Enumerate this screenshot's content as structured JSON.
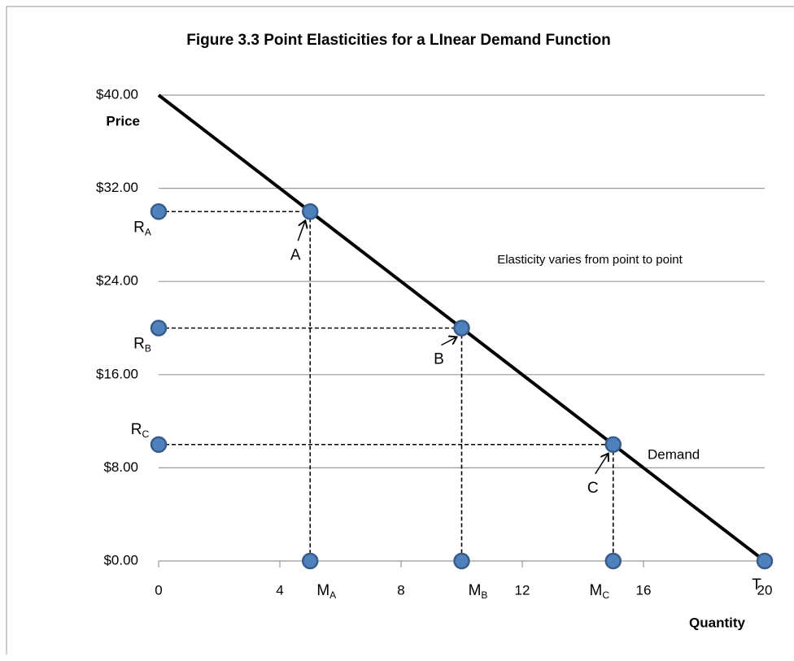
{
  "chart_data": {
    "type": "line",
    "title": "Figure 3.3    Point Elasticities for a LInear Demand Function",
    "xlabel": "Quantity",
    "ylabel": "Price",
    "annotation": "Elasticity varies from point to point",
    "series": [
      {
        "name": "Demand",
        "color": "#000000",
        "x": [
          0,
          20
        ],
        "values": [
          40,
          0
        ]
      }
    ],
    "points": {
      "color": "#4f81bd",
      "x": [
        0,
        0,
        0,
        5,
        10,
        15,
        5,
        10,
        15,
        20
      ],
      "values": [
        30,
        20,
        10,
        30,
        20,
        10,
        0,
        0,
        0,
        0
      ],
      "labels": [
        {
          "text": "R",
          "sub": "A"
        },
        {
          "text": "R",
          "sub": "B"
        },
        {
          "text": "R",
          "sub": "C"
        },
        {
          "text": "A"
        },
        {
          "text": "B"
        },
        {
          "text": "C"
        },
        {
          "text": "M",
          "sub": "A"
        },
        {
          "text": "M",
          "sub": "B"
        },
        {
          "text": "M",
          "sub": "C"
        },
        {
          "text": "T"
        }
      ]
    },
    "xlim": [
      0,
      20
    ],
    "xticks": [
      0,
      4,
      8,
      12,
      16,
      20
    ],
    "ylim": [
      0,
      40
    ],
    "yticks": [
      {
        "value": 0,
        "label": "$0.00"
      },
      {
        "value": 8,
        "label": "$8.00"
      },
      {
        "value": 16,
        "label": "$16.00"
      },
      {
        "value": 24,
        "label": "$24.00"
      },
      {
        "value": 32,
        "label": "$32.00"
      },
      {
        "value": 40,
        "label": "$40.00"
      }
    ],
    "grid": true
  }
}
